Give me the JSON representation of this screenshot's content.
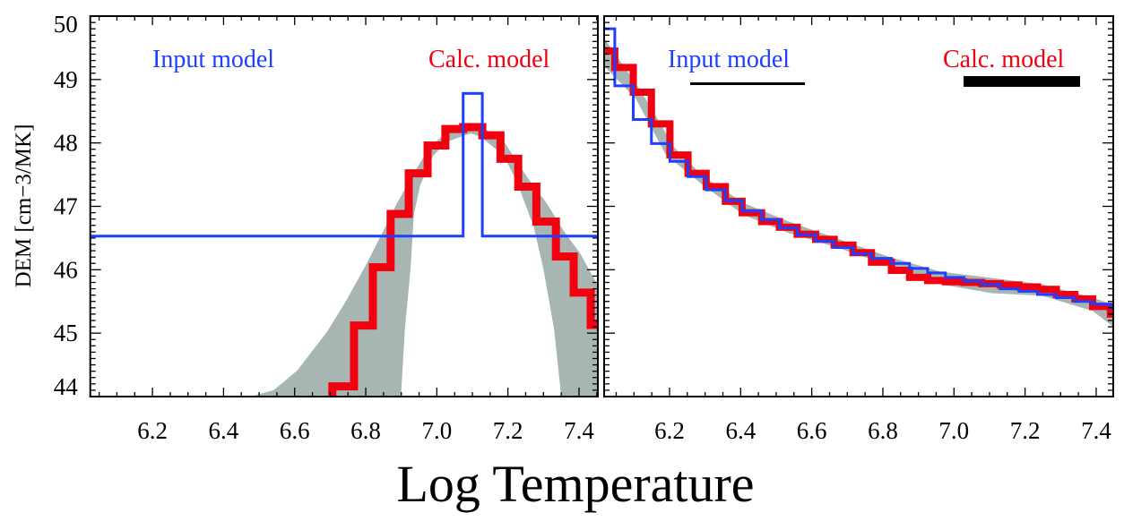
{
  "chart_data": {
    "type": "line",
    "xlabel": "Log Temperature",
    "ylabel": "DEM [cm−3/MK]",
    "ylim": [
      44,
      50
    ],
    "yticks": [
      "50",
      "49",
      "48",
      "47",
      "46",
      "45",
      "44"
    ],
    "ytick_values": [
      50,
      49,
      48,
      47,
      46,
      45,
      44
    ],
    "xticks": [
      "6.2",
      "6.4",
      "6.6",
      "6.8",
      "7.0",
      "7.2",
      "7.4"
    ],
    "xtick_values": [
      6.2,
      6.4,
      6.6,
      6.8,
      7.0,
      7.2,
      7.4
    ],
    "grid": false,
    "colors": {
      "input": "#1f3fff",
      "calc": "#f20010",
      "band": "#a7b6b3"
    },
    "panels": [
      {
        "name": "left",
        "xlim": [
          6.025,
          7.453
        ],
        "legend": {
          "input": "Input model",
          "calc": "Calc. model"
        },
        "input_model": {
          "edges": [
            6.0,
            7.074,
            7.128,
            7.46
          ],
          "values": [
            46.53,
            48.78,
            46.53
          ]
        },
        "calc_model": {
          "start_from": 43.9,
          "edges": [
            6.706,
            6.767,
            6.82,
            6.87,
            6.921,
            6.974,
            7.024,
            7.074,
            7.128,
            7.179,
            7.229,
            7.28,
            7.335,
            7.385,
            7.433,
            7.46
          ],
          "values": [
            44.16,
            45.12,
            46.04,
            46.88,
            47.52,
            47.96,
            48.22,
            48.25,
            48.12,
            47.75,
            47.31,
            46.76,
            46.21,
            45.64,
            45.13
          ]
        },
        "uncertainty_band": {
          "upper": [
            [
              6.45,
              43.9
            ],
            [
              6.495,
              44.03
            ],
            [
              6.541,
              44.1
            ],
            [
              6.607,
              44.41
            ],
            [
              6.691,
              45.02
            ],
            [
              6.748,
              45.54
            ],
            [
              6.804,
              46.11
            ],
            [
              6.842,
              46.53
            ],
            [
              6.888,
              47.05
            ],
            [
              6.935,
              47.52
            ],
            [
              6.981,
              47.95
            ],
            [
              7.029,
              48.16
            ],
            [
              7.095,
              48.32
            ],
            [
              7.141,
              48.2
            ],
            [
              7.188,
              48.03
            ],
            [
              7.253,
              47.47
            ],
            [
              7.309,
              47.05
            ],
            [
              7.356,
              46.62
            ],
            [
              7.404,
              46.25
            ],
            [
              7.455,
              45.73
            ],
            [
              7.46,
              45.7
            ]
          ],
          "lower": [
            [
              6.898,
              43.9
            ],
            [
              6.91,
              45.06
            ],
            [
              6.926,
              46.01
            ],
            [
              6.935,
              46.86
            ],
            [
              6.953,
              47.33
            ],
            [
              6.99,
              47.8
            ],
            [
              7.029,
              48.02
            ],
            [
              7.095,
              48.15
            ],
            [
              7.123,
              48.1
            ],
            [
              7.188,
              47.8
            ],
            [
              7.226,
              47.38
            ],
            [
              7.273,
              46.67
            ],
            [
              7.3,
              46.01
            ],
            [
              7.33,
              45.06
            ],
            [
              7.352,
              43.9
            ],
            [
              7.46,
              43.9
            ]
          ]
        }
      },
      {
        "name": "right",
        "xlim": [
          6.016,
          7.448
        ],
        "legend": {
          "input": "Input model",
          "calc": "Calc. model"
        },
        "input_model": {
          "edges": [
            6.0,
            6.046,
            6.098,
            6.149,
            6.201,
            6.252,
            6.303,
            6.357,
            6.404,
            6.459,
            6.509,
            6.559,
            6.611,
            6.663,
            6.716,
            6.768,
            6.824,
            6.875,
            6.926,
            6.976,
            7.028,
            7.078,
            7.13,
            7.183,
            7.235,
            7.288,
            7.34,
            7.39,
            7.44,
            7.46
          ],
          "values": [
            49.8,
            48.9,
            48.37,
            47.99,
            47.71,
            47.47,
            47.26,
            47.09,
            46.93,
            46.79,
            46.66,
            46.55,
            46.45,
            46.35,
            46.25,
            46.18,
            46.1,
            46.02,
            45.95,
            45.88,
            45.82,
            45.77,
            45.7,
            45.66,
            45.61,
            45.56,
            45.5,
            45.46,
            45.4
          ]
        },
        "calc_model": {
          "edges": [
            6.0,
            6.046,
            6.098,
            6.149,
            6.201,
            6.252,
            6.303,
            6.357,
            6.404,
            6.459,
            6.509,
            6.559,
            6.611,
            6.663,
            6.716,
            6.768,
            6.824,
            6.875,
            6.926,
            6.976,
            7.028,
            7.078,
            7.13,
            7.183,
            7.235,
            7.288,
            7.34,
            7.39,
            7.44,
            7.46
          ],
          "values": [
            49.45,
            49.19,
            48.8,
            48.3,
            47.81,
            47.52,
            47.31,
            47.08,
            46.9,
            46.76,
            46.67,
            46.56,
            46.48,
            46.39,
            46.27,
            46.12,
            45.99,
            45.88,
            45.83,
            45.81,
            45.8,
            45.78,
            45.76,
            45.73,
            45.69,
            45.61,
            45.54,
            45.42,
            45.3
          ]
        },
        "uncertainty_band": {
          "upper": [
            [
              6.0,
              49.7
            ],
            [
              6.02,
              49.62
            ],
            [
              6.105,
              48.94
            ],
            [
              6.153,
              48.51
            ],
            [
              6.21,
              47.95
            ],
            [
              6.295,
              47.47
            ],
            [
              6.41,
              47.05
            ],
            [
              6.535,
              46.76
            ],
            [
              6.677,
              46.48
            ],
            [
              6.82,
              46.2
            ],
            [
              6.963,
              45.97
            ],
            [
              7.107,
              45.87
            ],
            [
              7.248,
              45.77
            ],
            [
              7.39,
              45.56
            ],
            [
              7.46,
              45.43
            ]
          ],
          "lower": [
            [
              6.0,
              49.25
            ],
            [
              6.02,
              49.19
            ],
            [
              6.105,
              48.7
            ],
            [
              6.19,
              47.81
            ],
            [
              6.295,
              47.33
            ],
            [
              6.41,
              46.86
            ],
            [
              6.535,
              46.58
            ],
            [
              6.677,
              46.34
            ],
            [
              6.82,
              46.06
            ],
            [
              6.963,
              45.77
            ],
            [
              7.107,
              45.63
            ],
            [
              7.248,
              45.59
            ],
            [
              7.39,
              45.35
            ],
            [
              7.46,
              45.05
            ]
          ]
        }
      }
    ]
  }
}
